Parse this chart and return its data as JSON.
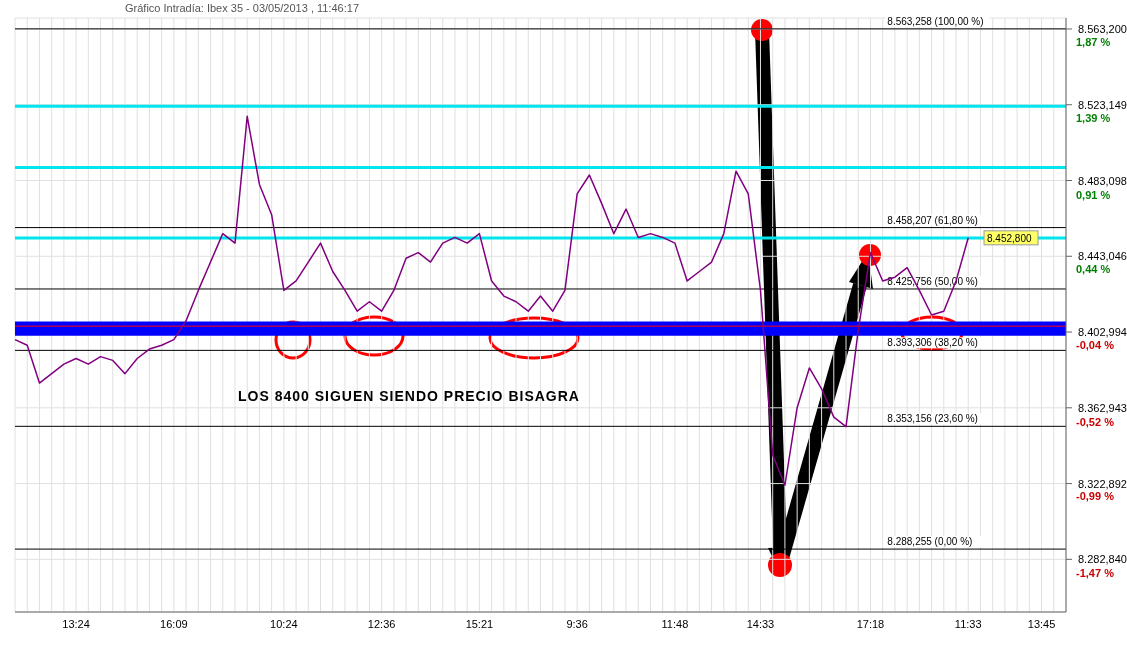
{
  "chart_data": {
    "type": "line",
    "title": "Gráfico Intradía:   Ibex 35 - 03/05/2013 , 11:46:17",
    "categories": [
      null,
      null,
      null,
      null,
      null,
      "13:24",
      null,
      null,
      null,
      null,
      null,
      null,
      null,
      "16:09",
      null,
      null,
      null,
      null,
      null,
      null,
      null,
      null,
      "10:24",
      null,
      null,
      null,
      null,
      null,
      null,
      null,
      "12:36",
      null,
      null,
      null,
      null,
      null,
      null,
      null,
      "15:21",
      null,
      null,
      null,
      null,
      null,
      null,
      null,
      "9:36",
      null,
      null,
      null,
      null,
      null,
      null,
      null,
      "11:48",
      null,
      null,
      null,
      null,
      null,
      null,
      "14:33",
      null,
      null,
      null,
      null,
      null,
      null,
      null,
      null,
      "17:18",
      null,
      null,
      null,
      null,
      null,
      null,
      null,
      "11:33",
      null,
      null,
      null,
      null,
      null,
      "13:45",
      null,
      null
    ],
    "series": [
      {
        "color": "#800080",
        "values": [
          8399,
          8396,
          8376,
          8381,
          8386,
          8389,
          8386,
          8390,
          8388,
          8381,
          8389,
          8394,
          8396,
          8399,
          8409,
          8425,
          8440,
          8455,
          8450,
          8517,
          8481,
          8465,
          8425,
          8430,
          8440,
          8450,
          8435,
          8425,
          8414,
          8419,
          8414,
          8425,
          8442,
          8445,
          8440,
          8450,
          8453,
          8450,
          8455,
          8430,
          8422,
          8419,
          8414,
          8422,
          8414,
          8425,
          8476,
          8486,
          8471,
          8455,
          8468,
          8453,
          8455,
          8453,
          8450,
          8430,
          8435,
          8440,
          8455,
          8488,
          8476,
          8425,
          8338,
          8322,
          8363,
          8384,
          8373,
          8358,
          8353,
          8404,
          8445,
          8430,
          8432,
          8437,
          8425,
          8412,
          8414,
          8430,
          8452.8,
          null,
          null,
          null,
          null,
          null,
          null,
          null,
          null
        ]
      }
    ],
    "ylim": [
      8255,
      8569
    ],
    "yticks": [
      {
        "value": 8282.84,
        "label": "8.282,840"
      },
      {
        "value": 8322.892,
        "label": "8.322,892"
      },
      {
        "value": 8362.943,
        "label": "8.362,943"
      },
      {
        "value": 8402.994,
        "label": "8.402,994"
      },
      {
        "value": 8443.046,
        "label": "8.443,046"
      },
      {
        "value": 8483.098,
        "label": "8.483,098"
      },
      {
        "value": 8523.149,
        "label": "8.523,149"
      },
      {
        "value": 8563.2,
        "label": "8.563,200"
      }
    ],
    "y2lim": [
      -1.8,
      1.94
    ],
    "y2ticks": [
      {
        "value": -1.47,
        "label": "-1,47 %"
      },
      {
        "value": -0.99,
        "label": "-0,99 %"
      },
      {
        "value": -0.52,
        "label": "-0,52 %"
      },
      {
        "value": -0.04,
        "label": "-0,04 %"
      },
      {
        "value": 0.44,
        "label": "0,44 %"
      },
      {
        "value": 0.91,
        "label": "0,91 %"
      },
      {
        "value": 1.39,
        "label": "1,39 %"
      },
      {
        "value": 1.87,
        "label": "1,87 %"
      }
    ],
    "grid": true,
    "marker": "none",
    "line_style": "solid",
    "ref_lines": [
      {
        "axis": "y",
        "value": 8563.258,
        "label": "8.563,258 (100,00 %)",
        "color": "#000000"
      },
      {
        "axis": "y",
        "value": 8458.207,
        "label": "8.458,207 (61,80 %)",
        "color": "#000000"
      },
      {
        "axis": "y",
        "value": 8425.756,
        "label": "8.425,756 (50,00 %)",
        "color": "#000000"
      },
      {
        "axis": "y",
        "value": 8393.306,
        "label": "8.393,306 (38,20 %)",
        "color": "#000000"
      },
      {
        "axis": "y",
        "value": 8353.156,
        "label": "8.353,156 (23,60 %)",
        "color": "#000000"
      },
      {
        "axis": "y",
        "value": 8288.255,
        "label": "8.288,255 (0,00 %)",
        "color": "#000000"
      },
      {
        "axis": "y",
        "value": 8522.3,
        "color": "#00e5ee"
      },
      {
        "axis": "y",
        "value": 8490,
        "color": "#00e5ee"
      },
      {
        "axis": "y",
        "value": 8452.7,
        "color": "#00e5ee"
      },
      {
        "axis": "y",
        "value": 8406.1,
        "color": "#ff0000"
      }
    ],
    "bands": [
      {
        "axis": "y",
        "from": 8401,
        "to": 8408.5,
        "color": "#0000ff"
      }
    ],
    "annotations": [
      "LOS 8400 SIGUEN SIENDO PRECIO BISAGRA",
      {
        "text": "8.452,800",
        "y": 8452.8
      }
    ]
  }
}
